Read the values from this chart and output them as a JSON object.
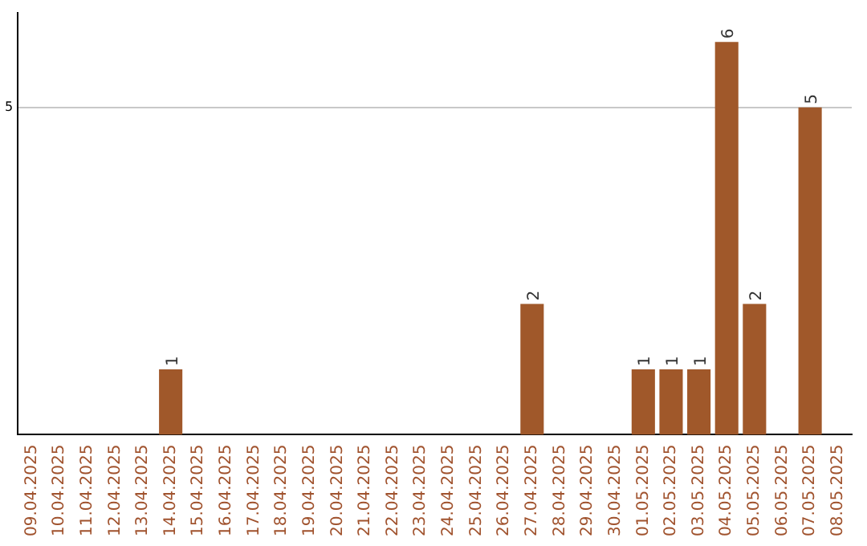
{
  "chart_data": {
    "type": "bar",
    "categories": [
      "09.04.2025",
      "10.04.2025",
      "11.04.2025",
      "12.04.2025",
      "13.04.2025",
      "14.04.2025",
      "15.04.2025",
      "16.04.2025",
      "17.04.2025",
      "18.04.2025",
      "19.04.2025",
      "20.04.2025",
      "21.04.2025",
      "22.04.2025",
      "23.04.2025",
      "24.04.2025",
      "25.04.2025",
      "26.04.2025",
      "27.04.2025",
      "28.04.2025",
      "29.04.2025",
      "30.04.2025",
      "01.05.2025",
      "02.05.2025",
      "03.05.2025",
      "04.05.2025",
      "05.05.2025",
      "06.05.2025",
      "07.05.2025",
      "08.05.2025"
    ],
    "values": [
      0,
      0,
      0,
      0,
      0,
      1,
      0,
      0,
      0,
      0,
      0,
      0,
      0,
      0,
      0,
      0,
      0,
      0,
      2,
      0,
      0,
      0,
      1,
      1,
      1,
      6,
      2,
      0,
      5,
      0
    ],
    "color": "#a0582a",
    "value_labels": [
      null,
      null,
      null,
      null,
      null,
      "1",
      null,
      null,
      null,
      null,
      null,
      null,
      null,
      null,
      null,
      null,
      null,
      null,
      "2",
      null,
      null,
      null,
      "1",
      "1",
      "1",
      "6",
      "2",
      null,
      "5",
      null
    ],
    "ylim": [
      0,
      6.45
    ],
    "yticks": [
      5
    ],
    "grid": "y",
    "legend": false
  }
}
